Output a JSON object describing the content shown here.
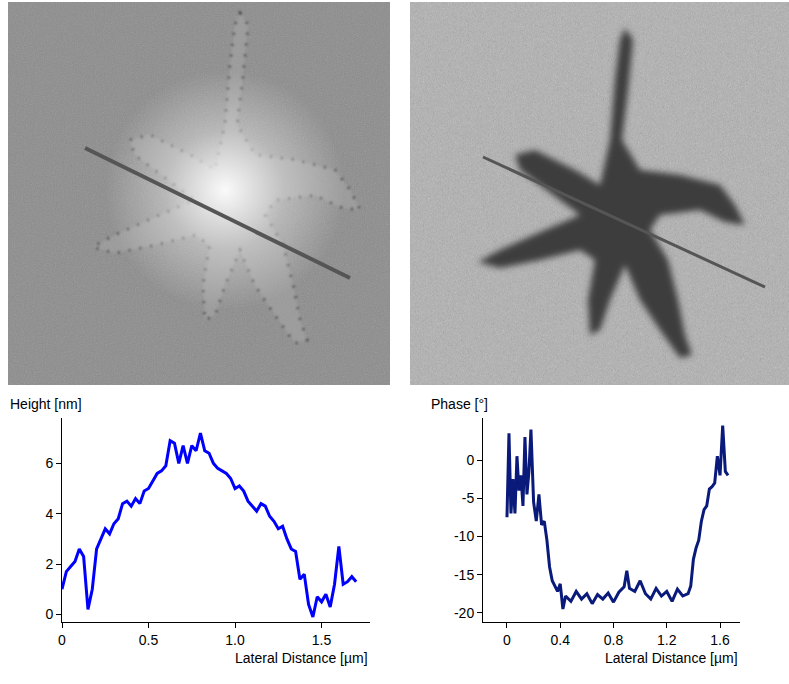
{
  "chart_data": [
    {
      "type": "line",
      "y_label": "Height [nm]",
      "x_label": "Lateral Distance [µm]",
      "color": "#0000ff",
      "x": [
        0,
        0.025,
        0.05,
        0.075,
        0.1,
        0.125,
        0.15,
        0.175,
        0.2,
        0.225,
        0.25,
        0.275,
        0.3,
        0.325,
        0.35,
        0.375,
        0.4,
        0.425,
        0.45,
        0.475,
        0.5,
        0.525,
        0.55,
        0.575,
        0.6,
        0.625,
        0.65,
        0.675,
        0.7,
        0.725,
        0.75,
        0.775,
        0.8,
        0.825,
        0.85,
        0.875,
        0.9,
        0.925,
        0.95,
        0.975,
        1.0,
        1.025,
        1.05,
        1.075,
        1.1,
        1.125,
        1.15,
        1.175,
        1.2,
        1.225,
        1.25,
        1.275,
        1.3,
        1.325,
        1.35,
        1.375,
        1.4,
        1.425,
        1.45,
        1.475,
        1.5,
        1.525,
        1.55,
        1.575,
        1.6,
        1.625,
        1.65,
        1.675,
        1.7
      ],
      "values": [
        1.0,
        1.7,
        1.9,
        2.1,
        2.6,
        2.3,
        0.2,
        1.0,
        2.6,
        3.0,
        3.4,
        3.2,
        3.6,
        3.8,
        4.4,
        4.5,
        4.3,
        4.6,
        4.4,
        4.9,
        5.0,
        5.3,
        5.6,
        5.7,
        5.9,
        6.9,
        6.8,
        6.0,
        6.7,
        6.0,
        6.7,
        6.5,
        7.2,
        6.5,
        6.4,
        6.0,
        5.8,
        5.7,
        5.6,
        5.4,
        5.0,
        5.1,
        4.9,
        4.5,
        4.3,
        4.1,
        4.4,
        4.3,
        3.9,
        3.7,
        3.4,
        3.5,
        3.0,
        2.6,
        2.5,
        1.4,
        1.6,
        0.4,
        -0.1,
        0.7,
        0.5,
        0.8,
        0.3,
        1.2,
        2.7,
        1.2,
        1.3,
        1.5,
        1.3
      ],
      "xlim": [
        0,
        1.78
      ],
      "ylim": [
        -0.3,
        7.8
      ],
      "xticks": [
        0,
        0.5,
        {
          "value": 1,
          "label": "1.0"
        },
        1.5
      ],
      "yticks": [
        0,
        2,
        4,
        6
      ]
    },
    {
      "type": "line",
      "y_label": "Phase [°]",
      "x_label": "Lateral Distance [µm]",
      "color": "#0a1a7a",
      "x": [
        0,
        0.015,
        0.03,
        0.045,
        0.06,
        0.075,
        0.09,
        0.105,
        0.12,
        0.135,
        0.15,
        0.165,
        0.18,
        0.2,
        0.22,
        0.24,
        0.26,
        0.28,
        0.3,
        0.32,
        0.34,
        0.36,
        0.38,
        0.4,
        0.42,
        0.44,
        0.48,
        0.52,
        0.56,
        0.6,
        0.64,
        0.68,
        0.72,
        0.76,
        0.8,
        0.84,
        0.88,
        0.9,
        0.92,
        0.96,
        1.0,
        1.04,
        1.08,
        1.12,
        1.16,
        1.2,
        1.24,
        1.28,
        1.32,
        1.36,
        1.38,
        1.4,
        1.42,
        1.44,
        1.46,
        1.48,
        1.5,
        1.52,
        1.54,
        1.56,
        1.58,
        1.6,
        1.62,
        1.64,
        1.66
      ],
      "values": [
        -7.5,
        3.5,
        -7,
        -2.5,
        -7,
        0.5,
        -4,
        -2,
        -6,
        3,
        -4.5,
        -1.5,
        4,
        -5.5,
        -8,
        -4.5,
        -8.5,
        -8,
        -10.5,
        -14,
        -15.8,
        -16.5,
        -17.2,
        -16.2,
        -19.5,
        -17.8,
        -18.5,
        -17.2,
        -18.2,
        -17.5,
        -18.8,
        -17.6,
        -18.2,
        -17.4,
        -18.6,
        -17.3,
        -16.6,
        -14.5,
        -16.8,
        -17.2,
        -15.8,
        -17.5,
        -18.2,
        -16.8,
        -17.8,
        -17.2,
        -18.5,
        -16.9,
        -17.8,
        -17.5,
        -16.5,
        -13,
        -11.5,
        -10.5,
        -8,
        -6.5,
        -6,
        -3.8,
        -3.5,
        -3,
        0.5,
        -2,
        4.5,
        -1.5,
        -2
      ],
      "xlim": [
        -0.18,
        1.75
      ],
      "ylim": [
        -21.2,
        5.5
      ],
      "xticks": [
        0,
        0.4,
        0.8,
        1.2,
        1.6
      ],
      "yticks": [
        0,
        -5,
        -10,
        -15,
        -20
      ]
    }
  ]
}
